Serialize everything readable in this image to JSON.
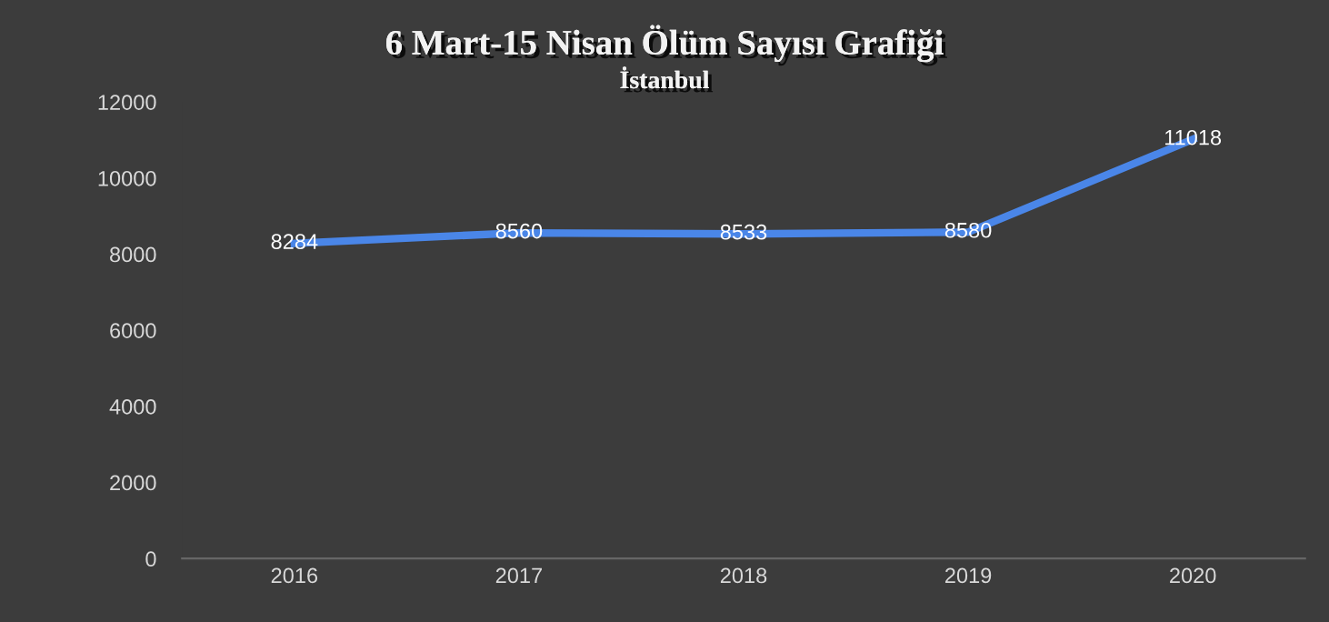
{
  "chart_data": {
    "type": "line",
    "title": "6 Mart-15 Nisan Ölüm Sayısı Grafiği",
    "subtitle": "İstanbul",
    "categories": [
      "2016",
      "2017",
      "2018",
      "2019",
      "2020"
    ],
    "series": [
      {
        "color": "#4a86e8",
        "values": [
          8284,
          8560,
          8533,
          8580,
          11018
        ]
      }
    ],
    "ylim": [
      0,
      12000
    ],
    "yticks": [
      0,
      2000,
      4000,
      6000,
      8000,
      10000,
      12000
    ],
    "data_labels": true,
    "marker": "none",
    "line_style": "solid"
  }
}
